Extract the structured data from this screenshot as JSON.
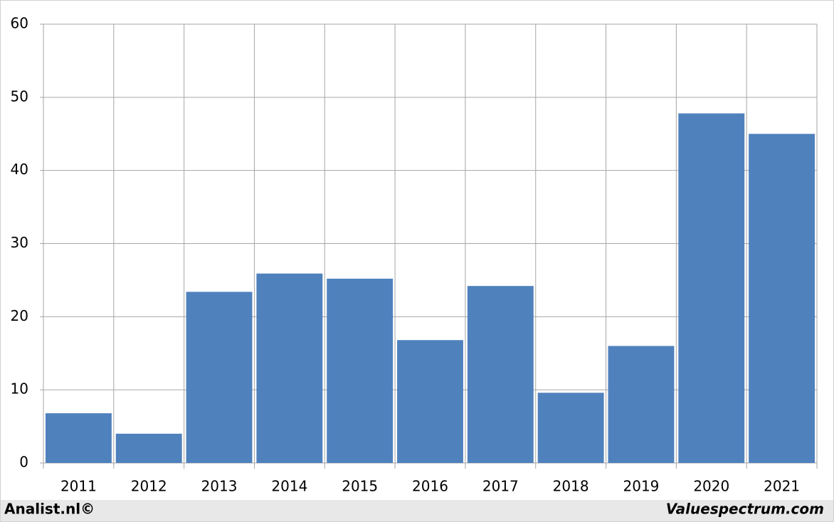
{
  "chart_data": {
    "type": "bar",
    "categories": [
      "2011",
      "2012",
      "2013",
      "2014",
      "2015",
      "2016",
      "2017",
      "2018",
      "2019",
      "2020",
      "2021"
    ],
    "values": [
      6.8,
      4.0,
      23.4,
      25.9,
      25.2,
      16.8,
      24.2,
      9.6,
      16.0,
      47.8,
      45.0
    ],
    "color": "#4f81bd",
    "ylim": [
      0,
      60
    ],
    "yticks": [
      0,
      10,
      20,
      30,
      40,
      50,
      60
    ],
    "grid": true,
    "footer_left": "Analist.nl©",
    "footer_right": "Valuespectrum.com"
  }
}
